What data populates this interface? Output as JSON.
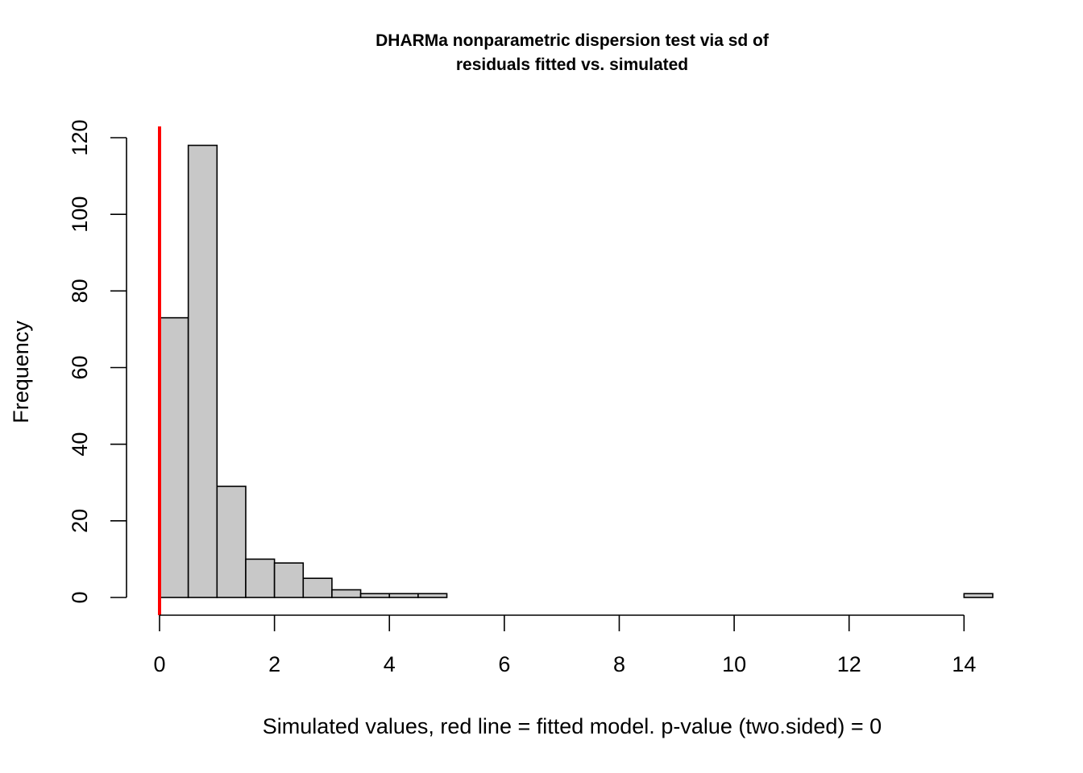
{
  "chart_data": {
    "type": "bar",
    "title_lines": [
      "DHARMa nonparametric dispersion test via sd of",
      "residuals fitted vs. simulated"
    ],
    "xlabel": "Simulated values, red line = fitted model. p-value (two.sided) = 0",
    "ylabel": "Frequency",
    "bin_width": 0.5,
    "bin_start": 0,
    "counts": [
      73,
      118,
      29,
      10,
      9,
      5,
      2,
      1,
      1,
      1,
      0,
      0,
      0,
      0,
      0,
      0,
      0,
      0,
      0,
      0,
      0,
      0,
      0,
      0,
      0,
      0,
      0,
      0,
      1
    ],
    "xlim": [
      0,
      14.5
    ],
    "ylim": [
      0,
      120
    ],
    "x_ticks": [
      0,
      2,
      4,
      6,
      8,
      10,
      12,
      14
    ],
    "y_ticks": [
      0,
      20,
      40,
      60,
      80,
      100,
      120
    ],
    "reference_line": {
      "x": 0.0,
      "color": "#ff0000",
      "label": "fitted model"
    },
    "bar_fill": "#c8c8c8",
    "bar_stroke": "#000000"
  }
}
